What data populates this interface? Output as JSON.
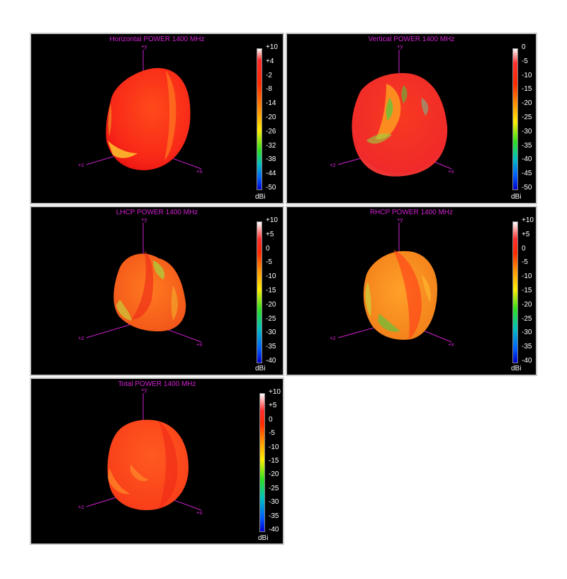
{
  "colors": {
    "axis": "#d020d0",
    "frame": "#c8c8c8",
    "background": "#000000"
  },
  "panels": [
    {
      "id": "horizontal",
      "title": "Horizontal POWER 1400  MHz",
      "colorbar": {
        "ticks": [
          "+10",
          "+4",
          "-2",
          "-8",
          "-14",
          "-20",
          "-26",
          "-32",
          "-38",
          "-44",
          "-50"
        ],
        "unit": "dBi"
      }
    },
    {
      "id": "vertical",
      "title": "Vertical POWER 1400  MHz",
      "colorbar": {
        "ticks": [
          "0",
          "-5",
          "-10",
          "-15",
          "-20",
          "-25",
          "-30",
          "-35",
          "-40",
          "-45",
          "-50"
        ],
        "unit": "dBi"
      }
    },
    {
      "id": "lhcp",
      "title": "LHCP POWER 1400  MHz",
      "colorbar": {
        "ticks": [
          "+10",
          "+5",
          "0",
          "-5",
          "-10",
          "-15",
          "-20",
          "-25",
          "-30",
          "-35",
          "-40"
        ],
        "unit": "dBi"
      }
    },
    {
      "id": "rhcp",
      "title": "RHCP POWER 1400  MHz",
      "colorbar": {
        "ticks": [
          "+10",
          "+5",
          "0",
          "-5",
          "-10",
          "-15",
          "-20",
          "-25",
          "-30",
          "-35",
          "-40"
        ],
        "unit": "dBi"
      }
    },
    {
      "id": "total",
      "title": "Total POWER 1400  MHz",
      "colorbar": {
        "ticks": [
          "+10",
          "+5",
          "0",
          "-5",
          "-10",
          "-15",
          "-20",
          "-25",
          "-30",
          "-35",
          "-40"
        ],
        "unit": "dBi"
      }
    }
  ],
  "axes": {
    "y": "+y",
    "x": "+x",
    "z": "+z"
  }
}
